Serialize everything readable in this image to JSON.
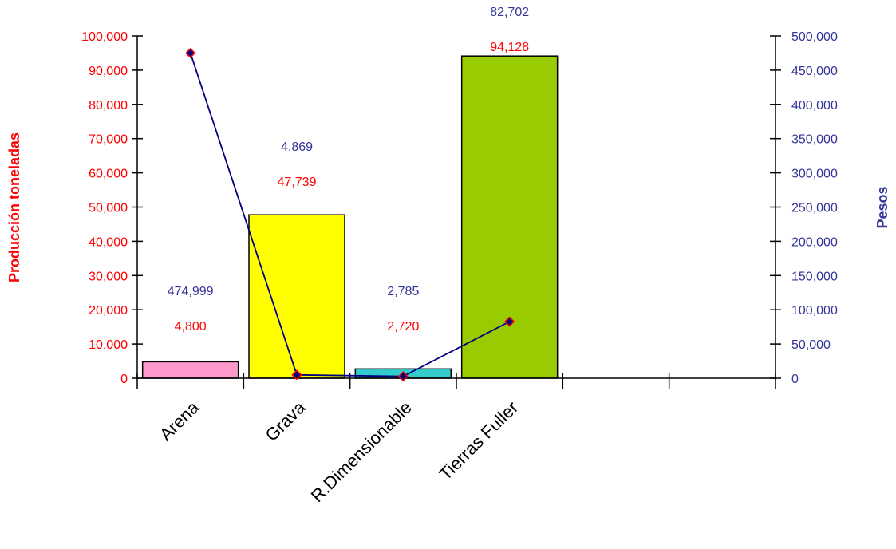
{
  "chart_data": {
    "type": "bar",
    "categories": [
      "Arena",
      "Grava",
      "R.Dimensionable",
      "Tierras Fuller"
    ],
    "empty_slots_after": 2,
    "series": [
      {
        "type": "bar",
        "axis": "left",
        "values": [
          4800,
          47739,
          2720,
          94128
        ],
        "labels": [
          "4,800",
          "47,739",
          "2,720",
          "94,128"
        ],
        "colors": [
          "#ff99cc",
          "#ffff00",
          "#33cccc",
          "#99cc00"
        ]
      },
      {
        "type": "line",
        "axis": "right",
        "values": [
          474999,
          4869,
          2785,
          82702
        ],
        "labels": [
          "474,999",
          "4,869",
          "2,785",
          "82,702"
        ],
        "color": "#000080",
        "marker_edge": "#ff0000"
      }
    ],
    "ylabel": "Producción toneladas",
    "y2label": "Pesos",
    "ylim": [
      0,
      100000
    ],
    "y2lim": [
      0,
      500000
    ],
    "yticks": [
      "0",
      "10,000",
      "20,000",
      "30,000",
      "40,000",
      "50,000",
      "60,000",
      "70,000",
      "80,000",
      "90,000",
      "100,000"
    ],
    "y2ticks": [
      "0",
      "50,000",
      "100,000",
      "150,000",
      "200,000",
      "250,000",
      "300,000",
      "350,000",
      "400,000",
      "450,000",
      "500,000"
    ],
    "grid": false,
    "legend": "none"
  }
}
